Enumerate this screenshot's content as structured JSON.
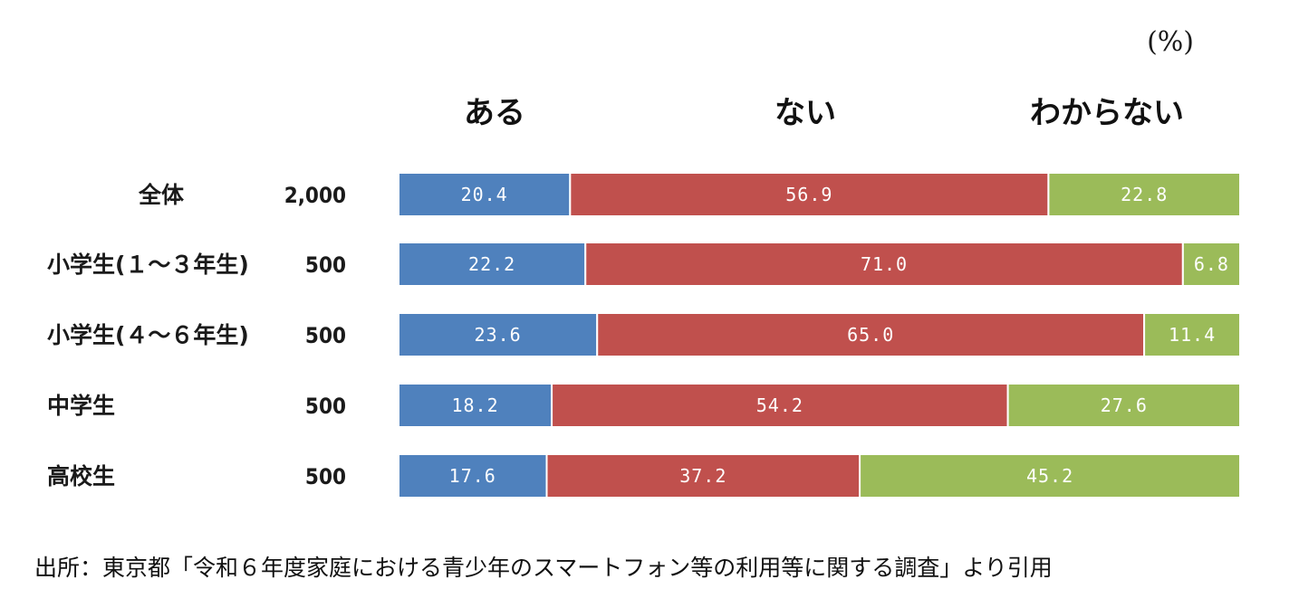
{
  "chart_data": {
    "type": "bar",
    "orientation": "horizontal",
    "stacked": true,
    "unit_label": "(%)",
    "categories": [
      "全体",
      "小学生(１～３年生)",
      "小学生(４～６年生)",
      "中学生",
      "高校生"
    ],
    "sample_sizes": [
      "2,000",
      "500",
      "500",
      "500",
      "500"
    ],
    "series": [
      {
        "name": "ある",
        "color": "#4f81bd",
        "values": [
          20.4,
          22.2,
          23.6,
          18.2,
          17.6
        ],
        "labels": [
          "20.4",
          "22.2",
          "23.6",
          "18.2",
          "17.6"
        ]
      },
      {
        "name": "ない",
        "color": "#c0504d",
        "values": [
          56.9,
          71.0,
          65.0,
          54.2,
          37.2
        ],
        "labels": [
          "56.9",
          "71.0",
          "65.0",
          "54.2",
          "37.2"
        ]
      },
      {
        "name": "わからない",
        "color": "#9bbb59",
        "values": [
          22.8,
          6.8,
          11.4,
          27.6,
          45.2
        ],
        "labels": [
          "22.8",
          "6.8",
          "11.4",
          "27.6",
          "45.2"
        ]
      }
    ],
    "xlim": [
      0,
      100
    ],
    "grid": false,
    "legend_position": "top"
  },
  "source": "出所：東京都「令和６年度家庭における青少年のスマートフォン等の利用等に関する調査」より引用"
}
